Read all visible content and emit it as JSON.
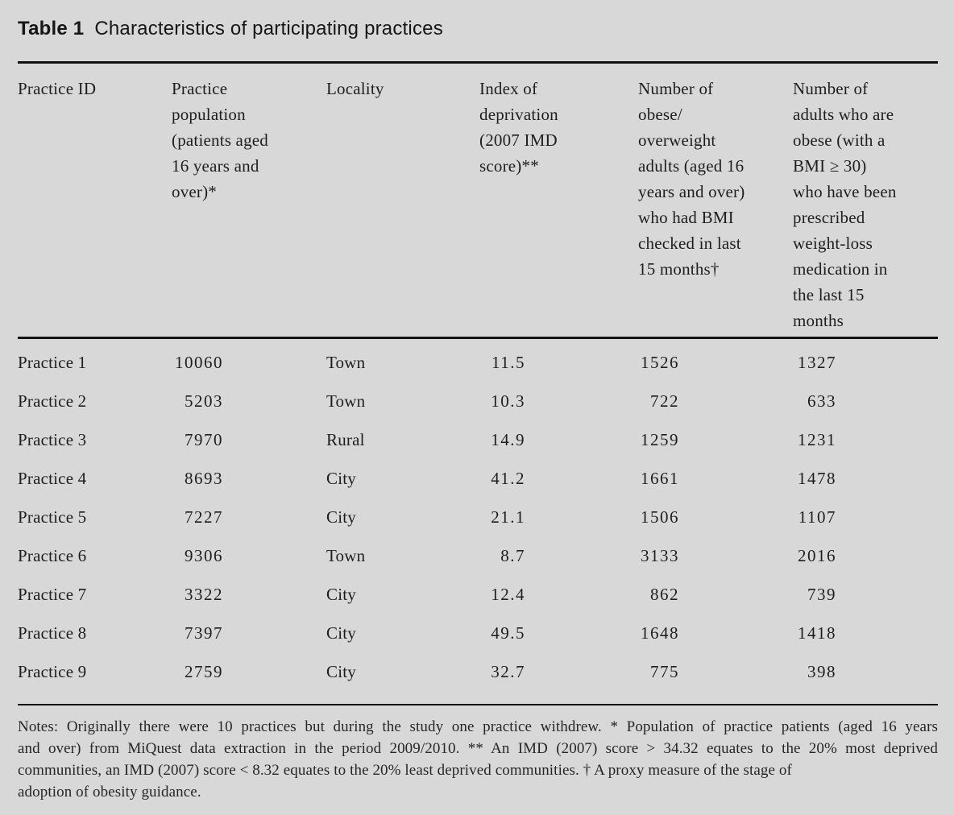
{
  "page": {
    "background_color": "#d8d8d8",
    "text_color": "#1e1e1e",
    "rule_color": "#121212"
  },
  "title": {
    "label": "Table 1",
    "text": "Characteristics of participating practices"
  },
  "table": {
    "headers": [
      "Practice ID",
      "Practice\npopulation\n(patients aged\n16 years and\nover)*",
      "Locality",
      "Index of\ndeprivation\n(2007 IMD\nscore)**",
      "Number of\nobese/\noverweight\nadults (aged 16\nyears and over)\nwho had BMI\nchecked in last\n15 months†",
      "Number of\nadults who are\nobese (with a\nBMI ≥ 30)\nwho have been\nprescribed\nweight-loss\nmedication in\nthe last 15\nmonths"
    ],
    "rows": [
      {
        "cells": [
          "Practice 1",
          "10060",
          "Town",
          "11.5",
          "1526",
          "1327"
        ]
      },
      {
        "cells": [
          "Practice 2",
          "5203",
          "Town",
          "10.3",
          "722",
          "633"
        ]
      },
      {
        "cells": [
          "Practice 3",
          "7970",
          "Rural",
          "14.9",
          "1259",
          "1231"
        ]
      },
      {
        "cells": [
          "Practice 4",
          "8693",
          "City",
          "41.2",
          "1661",
          "1478"
        ]
      },
      {
        "cells": [
          "Practice 5",
          "7227",
          "City",
          "21.1",
          "1506",
          "1107"
        ]
      },
      {
        "cells": [
          "Practice 6",
          "9306",
          "Town",
          "8.7",
          "3133",
          "2016"
        ]
      },
      {
        "cells": [
          "Practice 7",
          "3322",
          "City",
          "12.4",
          "862",
          "739"
        ]
      },
      {
        "cells": [
          "Practice 8",
          "7397",
          "City",
          "49.5",
          "1648",
          "1418"
        ]
      },
      {
        "cells": [
          "Practice 9",
          "2759",
          "City",
          "32.7",
          "775",
          "398"
        ]
      }
    ]
  },
  "notes": {
    "lines": [
      "Notes: Originally there were 10 practices but during the study one practice withdrew. * Population of practice patients (aged 16 years",
      "and over) from MiQuest data extraction in the period 2009/2010. ** An IMD (2007) score > 34.32 equates to the 20% most deprived",
      "communities, an IMD (2007) score < 8.32 equates to the 20% least deprived communities. † A proxy measure of the stage of",
      "adoption of obesity guidance."
    ]
  }
}
